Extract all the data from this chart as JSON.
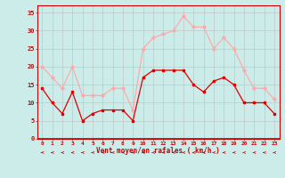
{
  "hours": [
    0,
    1,
    2,
    3,
    4,
    5,
    6,
    7,
    8,
    9,
    10,
    11,
    12,
    13,
    14,
    15,
    16,
    17,
    18,
    19,
    20,
    21,
    22,
    23
  ],
  "vent_moyen": [
    14,
    10,
    7,
    13,
    5,
    7,
    8,
    8,
    8,
    5,
    17,
    19,
    19,
    19,
    19,
    15,
    13,
    16,
    17,
    15,
    10,
    10,
    10,
    7
  ],
  "en_rafales": [
    20,
    17,
    14,
    20,
    12,
    12,
    12,
    14,
    14,
    8,
    25,
    28,
    29,
    30,
    34,
    31,
    31,
    25,
    28,
    25,
    19,
    14,
    14,
    11
  ],
  "bg_color": "#ccecea",
  "grid_color": "#bbbbbb",
  "line1_color": "#dd0000",
  "line2_color": "#ffaaaa",
  "xlabel": "Vent moyen/en rafales ( km/h )",
  "xlabel_color": "#cc0000",
  "tick_color": "#cc0000",
  "axis_color": "#cc0000",
  "ylim_min": 0,
  "ylim_max": 37,
  "yticks": [
    0,
    5,
    10,
    15,
    20,
    25,
    30,
    35
  ],
  "arrow_color": "#cc0000",
  "figwidth": 3.2,
  "figheight": 2.0,
  "dpi": 100
}
